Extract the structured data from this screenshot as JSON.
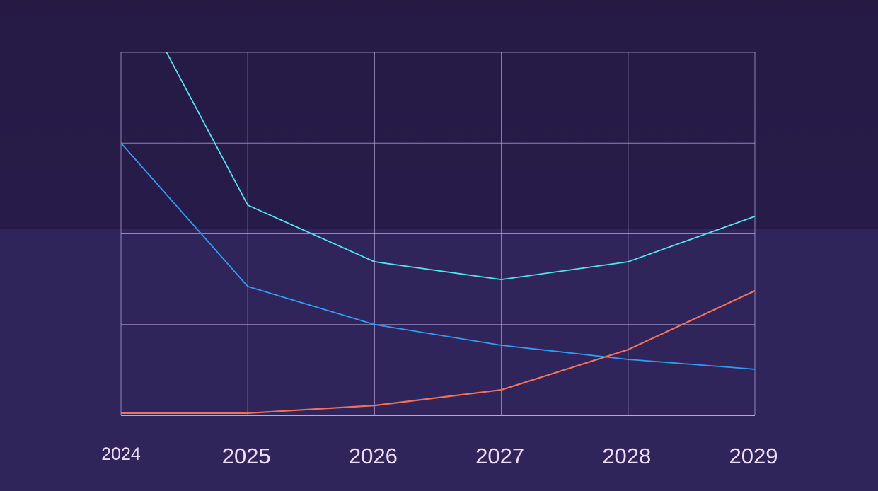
{
  "chart_data": {
    "type": "line",
    "x": [
      "2024",
      "2025",
      "2026",
      "2027",
      "2028",
      "2029"
    ],
    "ylim": [
      0,
      100
    ],
    "grid": true,
    "series": [
      {
        "color": "#4fe3ec",
        "values": [
          123.6,
          57.9,
          42.3,
          37.4,
          42.3,
          54.8
        ]
      },
      {
        "color": "#2f9cf5",
        "values": [
          75.0,
          35.5,
          25.0,
          19.3,
          15.4,
          12.7
        ]
      },
      {
        "color": "#f0705a",
        "values": [
          0.6,
          0.6,
          2.7,
          7.0,
          18.1,
          34.3
        ]
      }
    ],
    "colors": {
      "grid": "#b3a8d6",
      "tick_text": "#eedcf5",
      "background_top": "#261a45",
      "background_bottom": "#30255a"
    }
  }
}
